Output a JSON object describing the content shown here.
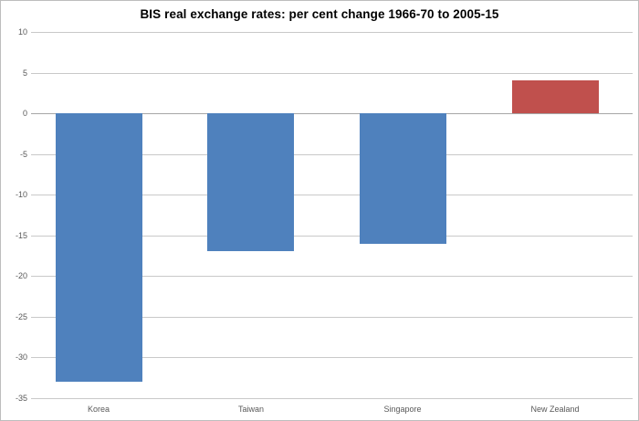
{
  "chart_data": {
    "type": "bar",
    "title": "BIS real exchange rates: per cent change 1966-70 to 2005-15",
    "categories": [
      "Korea",
      "Taiwan",
      "Singapore",
      "New Zealand"
    ],
    "values": [
      -33,
      -17,
      -16,
      4
    ],
    "bar_colors": [
      "#4F81BD",
      "#4F81BD",
      "#4F81BD",
      "#C0504D"
    ],
    "xlabel": "",
    "ylabel": "",
    "ylim": [
      -35,
      10
    ],
    "yticks": [
      10,
      5,
      0,
      -5,
      -10,
      -15,
      -20,
      -25,
      -30,
      -35
    ],
    "grid": true,
    "legend": "none",
    "colors": {
      "negative_bar": "#4F81BD",
      "positive_bar": "#C0504D",
      "gridline": "#C9C9C9",
      "zero_axis": "#A6A6A6",
      "tick_text": "#595959",
      "title_text": "#000000",
      "border": "#BDBDBD",
      "background": "#FFFFFF"
    }
  }
}
